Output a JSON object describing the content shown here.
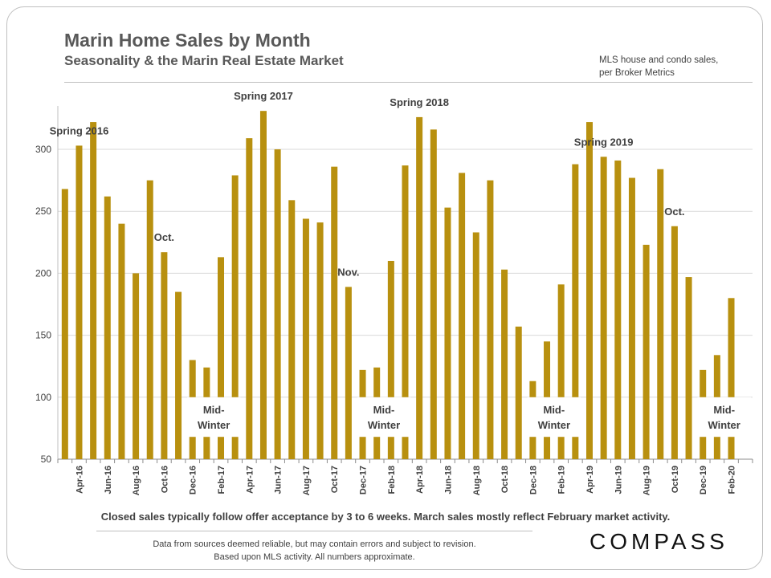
{
  "header": {
    "title": "Marin Home Sales by Month",
    "subtitle": "Seasonality  & the Marin  Real Estate Market",
    "source_note_line1": "MLS house and condo sales,",
    "source_note_line2": "per Broker Metrics"
  },
  "footer": {
    "caption": "Closed sales typically follow offer acceptance by 3 to 6 weeks. March sales mostly reflect February market activity.",
    "disclaimer_line1": "Data from sources deemed reliable, but may contain errors and subject to revision.",
    "disclaimer_line2": "Based upon MLS activity.  All numbers approximate.",
    "logo_text": "COMPASS"
  },
  "chart_data": {
    "type": "bar",
    "bar_color": "#b8900f",
    "grid": true,
    "ylim": [
      50,
      335
    ],
    "yticks": [
      50,
      100,
      150,
      200,
      250,
      300
    ],
    "categories": [
      "Mar-16",
      "Apr-16",
      "May-16",
      "Jun-16",
      "Jul-16",
      "Aug-16",
      "Sep-16",
      "Oct-16",
      "Nov-16",
      "Dec-16",
      "Jan-17",
      "Feb-17",
      "Mar-17",
      "Apr-17",
      "May-17",
      "Jun-17",
      "Jul-17",
      "Aug-17",
      "Sep-17",
      "Oct-17",
      "Nov-17",
      "Dec-17",
      "Jan-18",
      "Feb-18",
      "Mar-18",
      "Apr-18",
      "May-18",
      "Jun-18",
      "Jul-18",
      "Aug-18",
      "Sep-18",
      "Oct-18",
      "Nov-18",
      "Dec-18",
      "Jan-19",
      "Feb-19",
      "Mar-19",
      "Apr-19",
      "May-19",
      "Jun-19",
      "Jul-19",
      "Aug-19",
      "Sep-19",
      "Oct-19",
      "Nov-19",
      "Dec-19",
      "Jan-20",
      "Feb-20",
      "Mar-20"
    ],
    "xtick_labels": [
      "Apr-16",
      "Jun-16",
      "Aug-16",
      "Oct-16",
      "Dec-16",
      "Feb-17",
      "Apr-17",
      "Jun-17",
      "Aug-17",
      "Oct-17",
      "Dec-17",
      "Feb-18",
      "Apr-18",
      "Jun-18",
      "Aug-18",
      "Oct-18",
      "Dec-18",
      "Feb-19",
      "Apr-19",
      "Jun-19",
      "Aug-19",
      "Oct-19",
      "Dec-19",
      "Feb-20"
    ],
    "values": [
      268,
      303,
      322,
      262,
      240,
      200,
      275,
      217,
      185,
      130,
      124,
      213,
      279,
      309,
      331,
      300,
      259,
      244,
      241,
      286,
      189,
      122,
      124,
      210,
      287,
      326,
      316,
      253,
      281,
      233,
      275,
      203,
      157,
      113,
      145,
      191,
      288,
      322,
      294,
      291,
      277,
      223,
      284,
      238,
      197,
      122,
      134,
      180,
      null
    ],
    "annotations": [
      {
        "text": "Spring 2016",
        "category": "Apr-16"
      },
      {
        "text": "Oct.",
        "category": "Oct-16"
      },
      {
        "text": "Spring 2017",
        "category": "May-17"
      },
      {
        "text": "Nov.",
        "category": "Nov-17"
      },
      {
        "text": "Spring 2018",
        "category": "Apr-18"
      },
      {
        "text": "Spring 2019",
        "category": "May-19"
      },
      {
        "text": "Oct.",
        "category": "Oct-19"
      }
    ],
    "boxes": [
      {
        "line1": "Mid-",
        "line2": "Winter",
        "from": "Dec-16",
        "to": "Mar-17"
      },
      {
        "line1": "Mid-",
        "line2": "Winter",
        "from": "Dec-17",
        "to": "Mar-18"
      },
      {
        "line1": "Mid-",
        "line2": "Winter",
        "from": "Dec-18",
        "to": "Mar-19"
      },
      {
        "line1": "Mid-",
        "line2": "Winter",
        "from": "Dec-19",
        "to": "Mar-20"
      }
    ]
  }
}
